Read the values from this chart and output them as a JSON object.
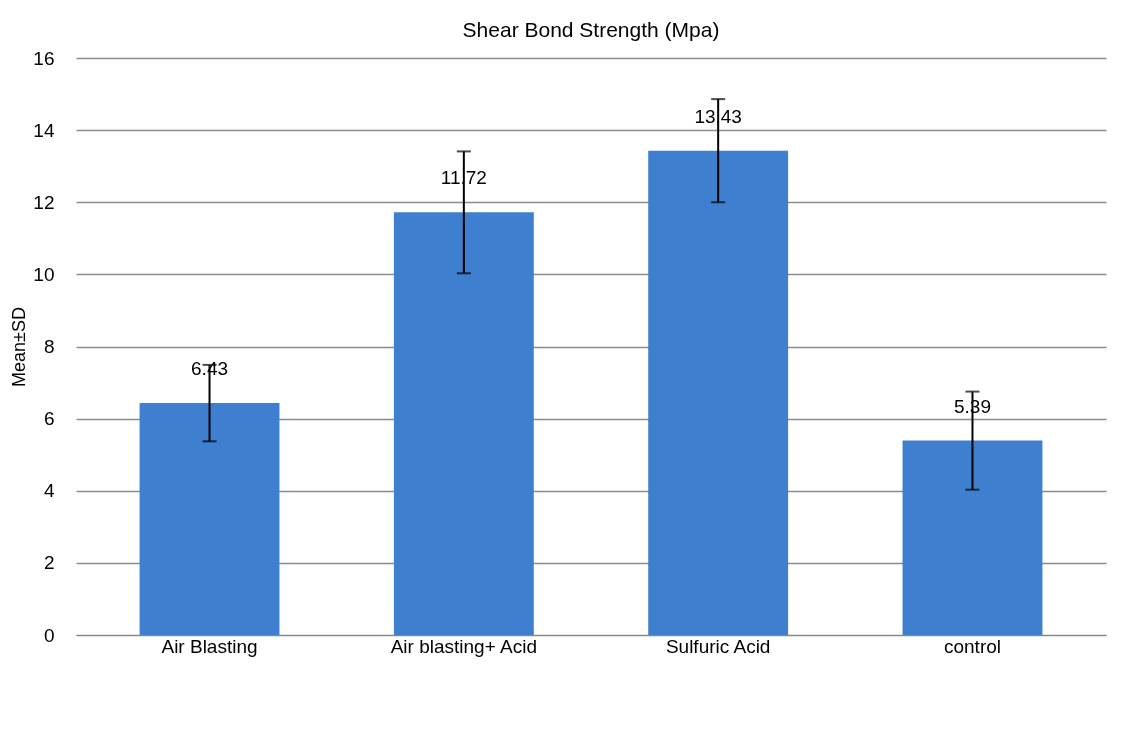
{
  "chart_data": {
    "type": "bar",
    "title": "Shear Bond Strength (Mpa)",
    "ylabel": "Mean±SD",
    "categories": [
      "Air Blasting",
      "Air blasting+ Acid",
      "Sulfuric Acid",
      "control"
    ],
    "values": [
      6.43,
      11.72,
      13.43,
      5.39
    ],
    "errors": [
      1.06,
      1.69,
      1.43,
      1.36
    ],
    "color": "#3f7fcf",
    "ylim": [
      0,
      16
    ],
    "yticks": [
      0,
      2,
      4,
      6,
      8,
      10,
      12,
      14,
      16
    ],
    "grid": "y",
    "data_labels": true
  }
}
